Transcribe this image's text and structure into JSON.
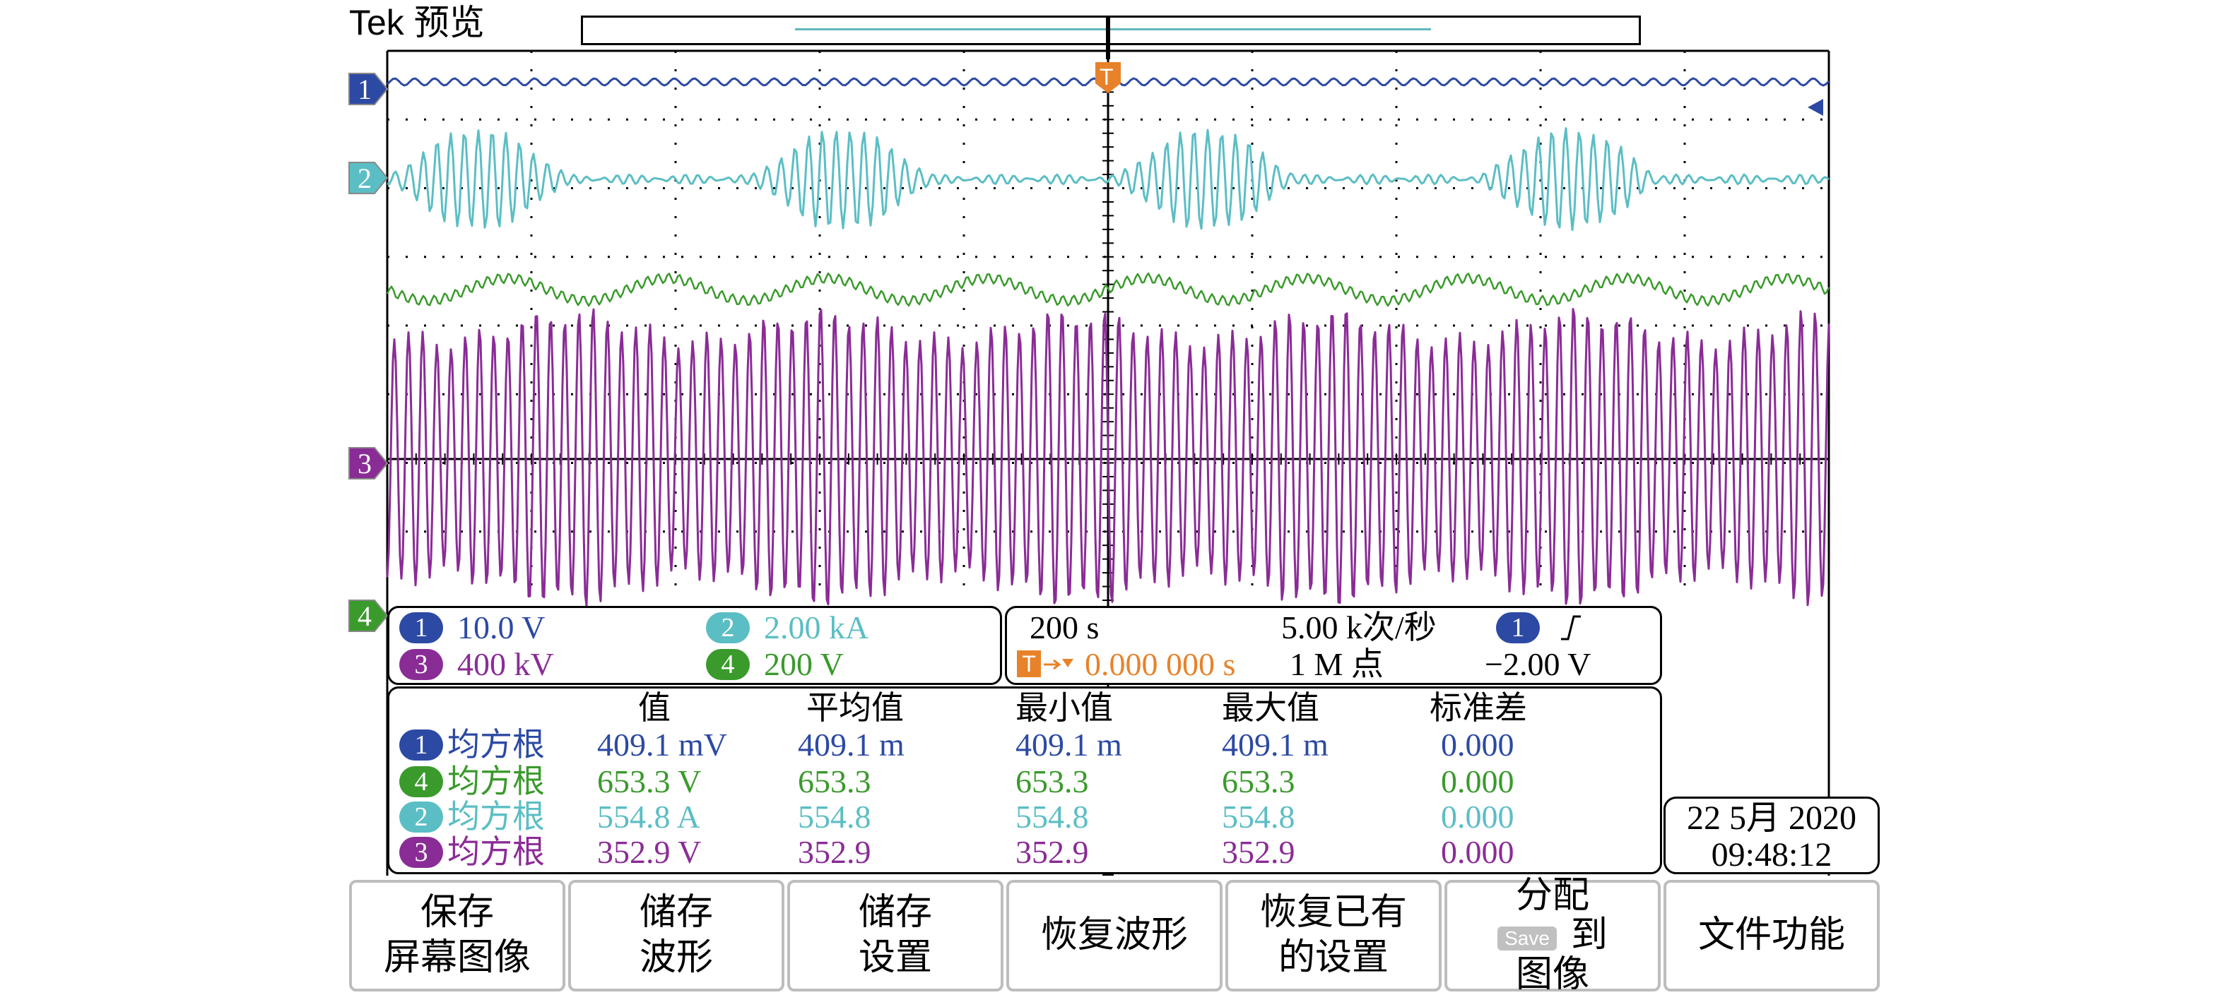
{
  "header": {
    "title": "Tek 预览"
  },
  "colors": {
    "ch1": "#2c4aa3",
    "ch2": "#5bbec4",
    "ch3": "#8a2c96",
    "ch4": "#3a9a2c",
    "trigger": "#e8822a",
    "grid": "#000000",
    "record_window": "#5fb8bd"
  },
  "markers": {
    "ch1": "1",
    "ch2": "2",
    "ch3": "3",
    "ch4": "4",
    "trigger": "T"
  },
  "channels": [
    {
      "num": "1",
      "scale": "10.0 V"
    },
    {
      "num": "2",
      "scale": "2.00 kA"
    },
    {
      "num": "3",
      "scale": "400 kV"
    },
    {
      "num": "4",
      "scale": "200 V"
    }
  ],
  "timebase": {
    "scale": "200 s",
    "sample_rate": "5.00 k次/秒",
    "trigger_position": "0.000 000 s",
    "record_length": "1 M 点",
    "trigger_channel": "1",
    "trigger_slope_icon": "rising-edge-icon",
    "trigger_level": "−2.00 V"
  },
  "measurements": {
    "headers": [
      "值",
      "平均值",
      "最小值",
      "最大值",
      "标准差"
    ],
    "rows": [
      {
        "ch": "1",
        "type": "均方根",
        "value": "409.1 mV",
        "mean": "409.1 m",
        "min": "409.1 m",
        "max": "409.1 m",
        "std": "0.000"
      },
      {
        "ch": "4",
        "type": "均方根",
        "value": "653.3 V",
        "mean": "653.3",
        "min": "653.3",
        "max": "653.3",
        "std": "0.000"
      },
      {
        "ch": "2",
        "type": "均方根",
        "value": "554.8 A",
        "mean": "554.8",
        "min": "554.8",
        "max": "554.8",
        "std": "0.000"
      },
      {
        "ch": "3",
        "type": "均方根",
        "value": "352.9 V",
        "mean": "352.9",
        "min": "352.9",
        "max": "352.9",
        "std": "0.000"
      }
    ]
  },
  "datetime": {
    "date": "22 5月 2020",
    "time": "09:48:12"
  },
  "menu": [
    {
      "line1": "保存",
      "line2": "屏幕图像"
    },
    {
      "line1": "储存",
      "line2": "波形"
    },
    {
      "line1": "储存",
      "line2": "设置"
    },
    {
      "line1": "恢复波形",
      "line2": ""
    },
    {
      "line1": "恢复已有",
      "line2": "的设置"
    },
    {
      "line1": "分配",
      "save_chip": "Save",
      "line2": "到",
      "line3": "图像"
    },
    {
      "line1": "文件功能",
      "line2": ""
    }
  ]
}
